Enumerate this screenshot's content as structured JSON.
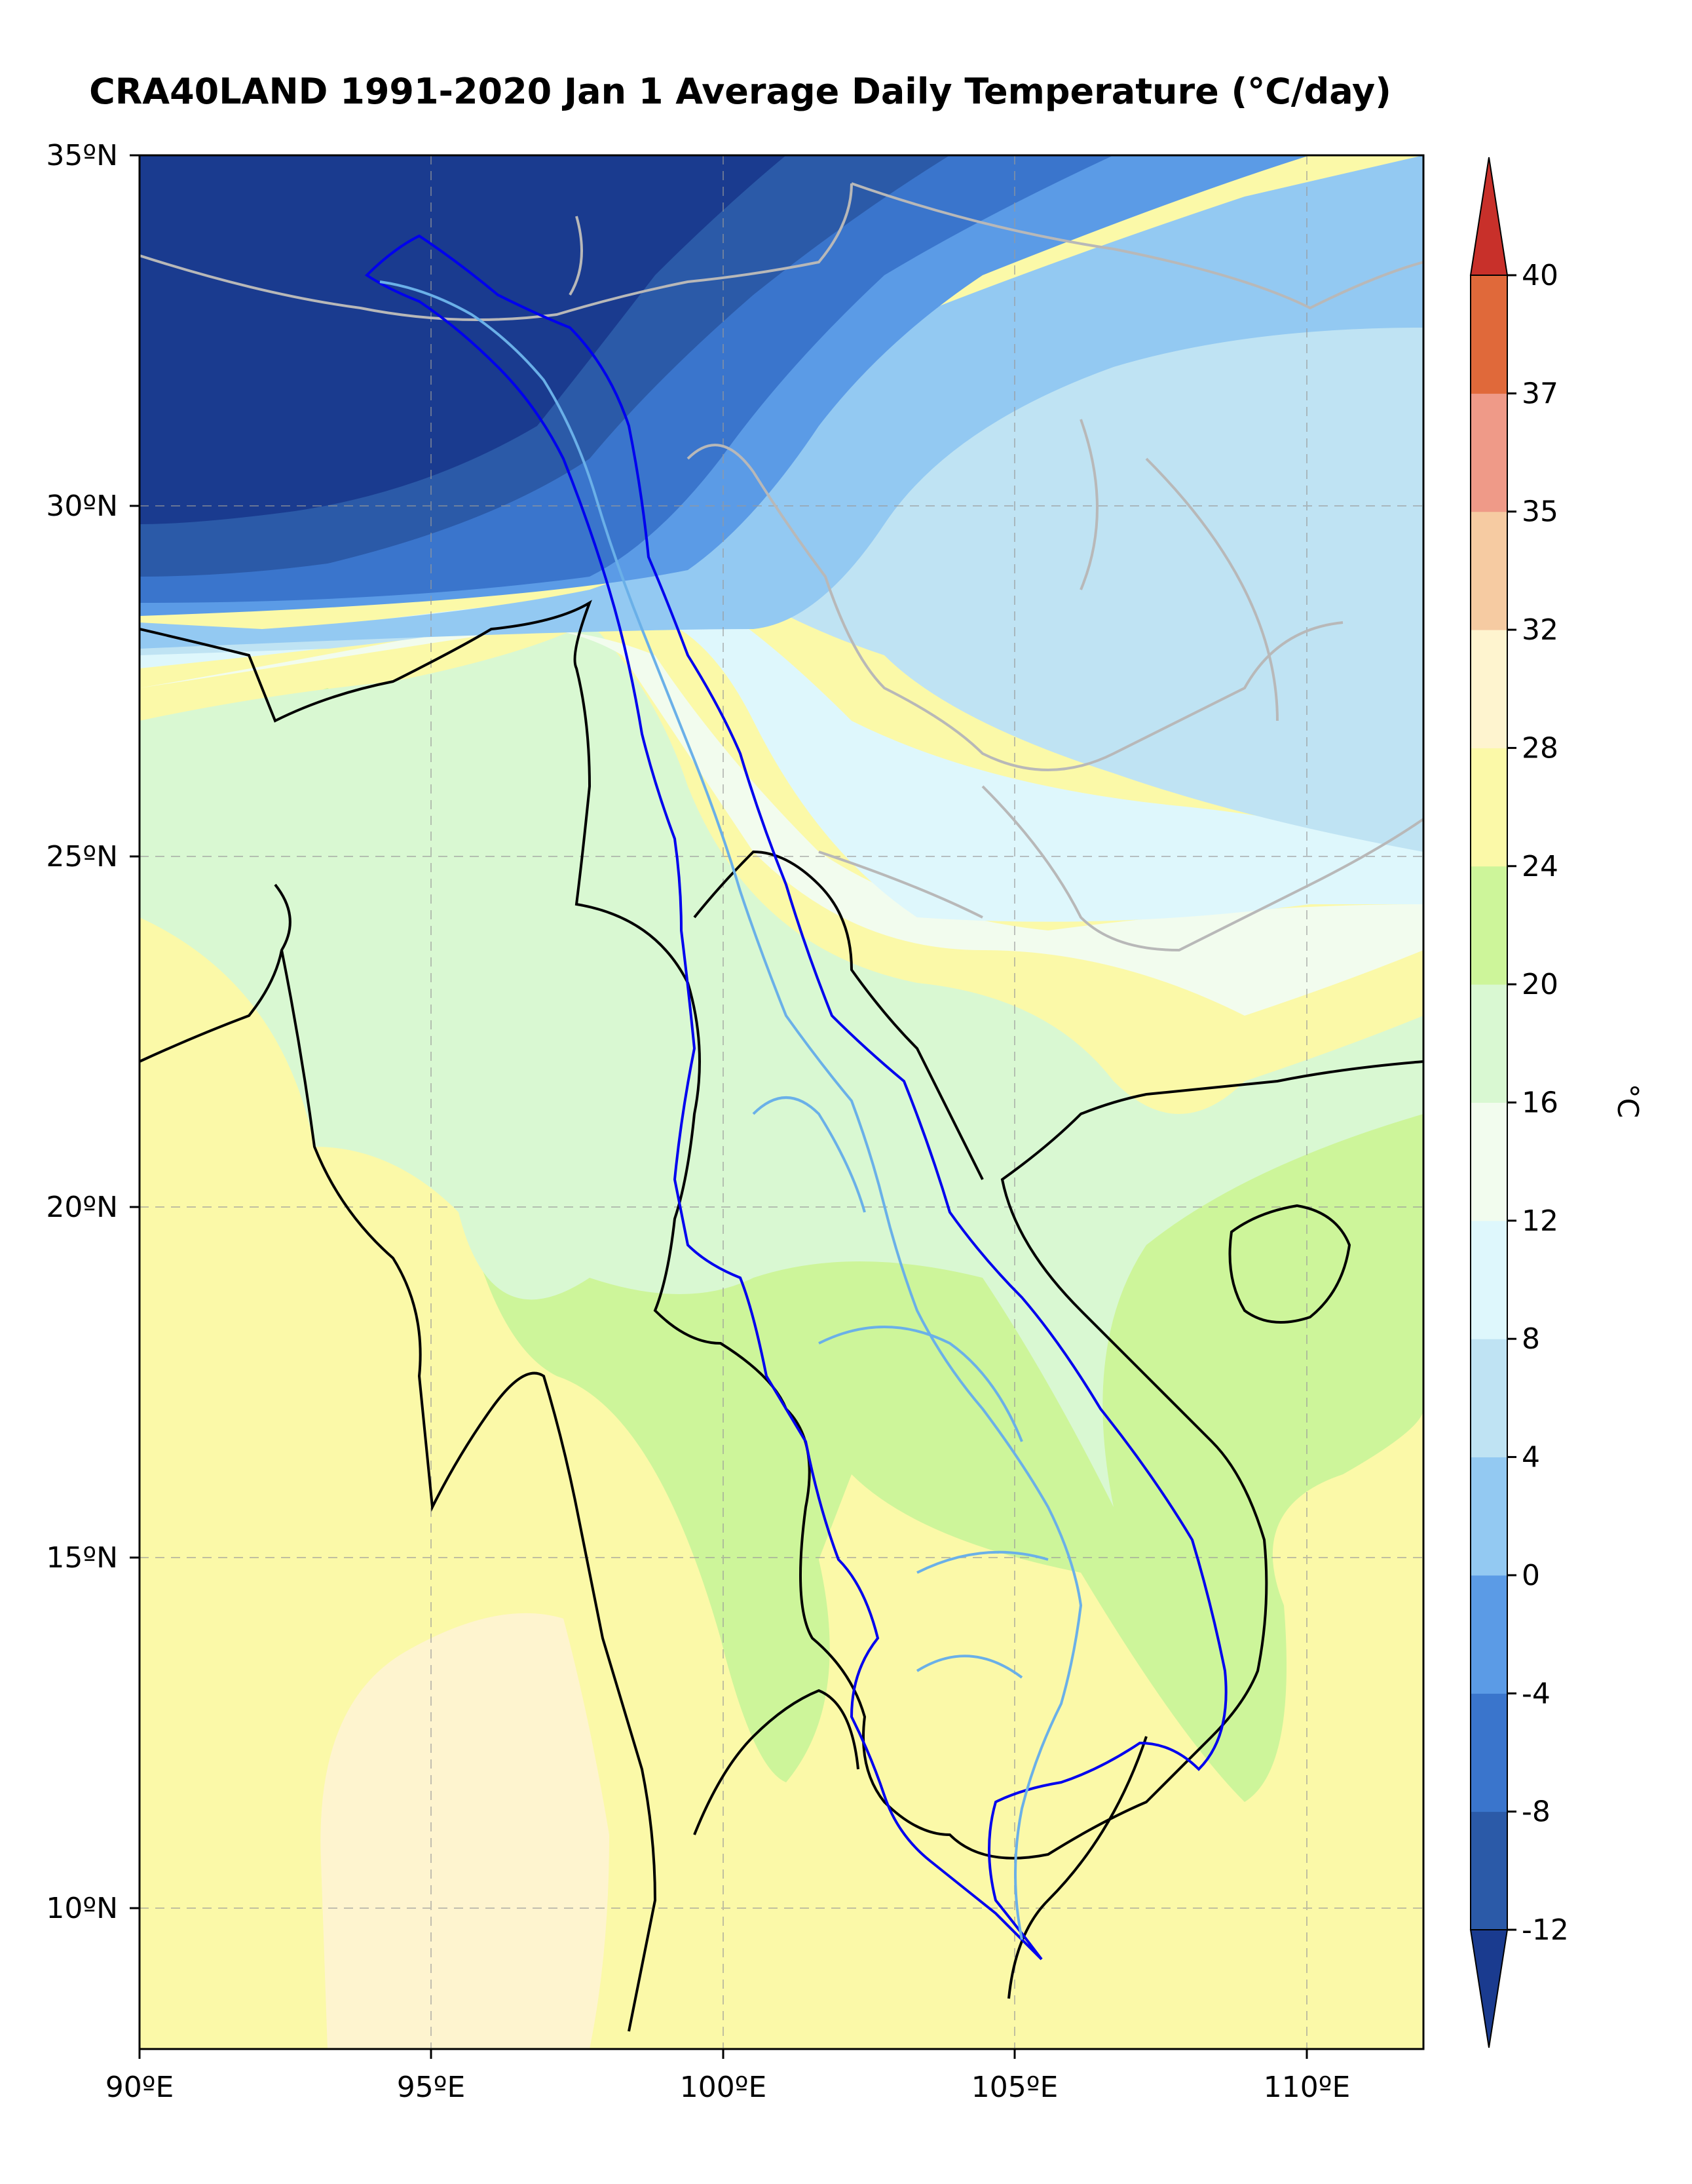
{
  "title": "CRA40LAND 1991-2020 Jan 1 Average Daily Temperature (°C/day)",
  "map": {
    "lon_range": [
      90,
      112
    ],
    "lat_range": [
      8,
      35
    ],
    "x_ticks": [
      "90ºE",
      "95ºE",
      "100ºE",
      "105ºE",
      "110ºE"
    ],
    "y_ticks": [
      "35ºN",
      "30ºN",
      "25ºN",
      "20ºN",
      "15ºN",
      "10ºN"
    ],
    "gridlines": true
  },
  "colorbar": {
    "label": "°C",
    "tick_labels": [
      "-12",
      "-8",
      "-4",
      "0",
      "4",
      "8",
      "12",
      "16",
      "20",
      "24",
      "28",
      "32",
      "35",
      "37",
      "40"
    ],
    "levels": [
      -12,
      -8,
      -4,
      0,
      4,
      8,
      12,
      16,
      20,
      24,
      28,
      32,
      35,
      37,
      40
    ],
    "colors": [
      "#1a3b8f",
      "#2b5aa8",
      "#3a75cc",
      "#5b9be6",
      "#93c9f2",
      "#bfe3f3",
      "#def7fc",
      "#f2fcee",
      "#d9f8d2",
      "#cdf59a",
      "#fbf9a8",
      "#fef4cf",
      "#f6cba2",
      "#ef9a88",
      "#e0693a",
      "#c8302a"
    ]
  },
  "colors": {
    "basin_boundary": "#0000ee",
    "rivers": "#6ab0e8",
    "country_borders": "#000000",
    "province_borders": "#b8b8b8"
  }
}
